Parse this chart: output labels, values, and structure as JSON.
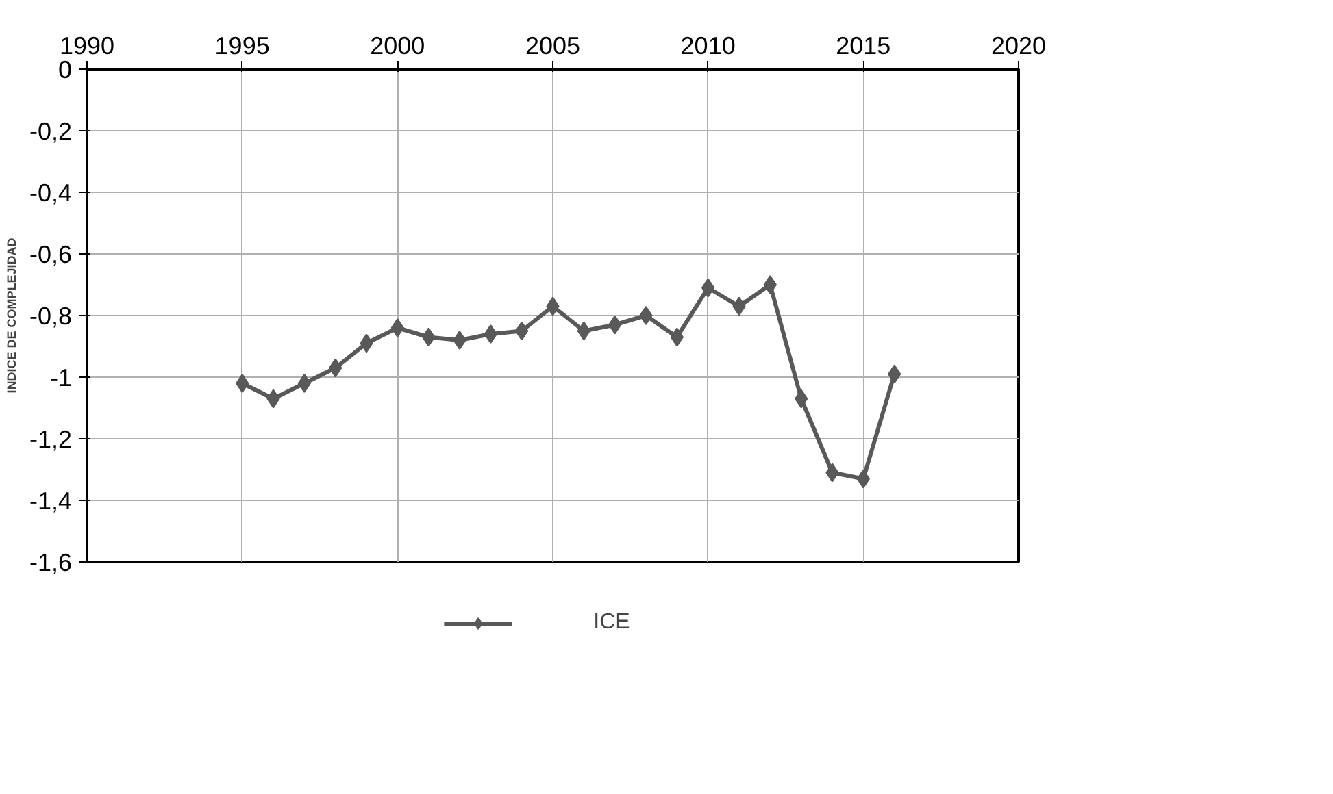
{
  "chart_data": {
    "type": "line",
    "ylabel": "INDICE DE COMPLEJIDAD",
    "x": [
      1995,
      1996,
      1997,
      1998,
      1999,
      2000,
      2001,
      2002,
      2003,
      2004,
      2005,
      2006,
      2007,
      2008,
      2009,
      2010,
      2011,
      2012,
      2013,
      2014,
      2015,
      2016
    ],
    "series": [
      {
        "name": "ICE",
        "color": "#595959",
        "values": [
          -1.02,
          -1.07,
          -1.02,
          -0.97,
          -0.89,
          -0.84,
          -0.87,
          -0.88,
          -0.86,
          -0.85,
          -0.77,
          -0.85,
          -0.83,
          -0.8,
          -0.87,
          -0.71,
          -0.77,
          -0.7,
          -1.07,
          -1.31,
          -1.33,
          -0.99
        ]
      }
    ],
    "xlim": [
      1990,
      2020
    ],
    "xticks": [
      1990,
      1995,
      2000,
      2005,
      2010,
      2015,
      2020
    ],
    "ylim": [
      -1.6,
      0
    ],
    "yticks": [
      {
        "value": 0,
        "label": "0"
      },
      {
        "value": -0.2,
        "label": "-0,2"
      },
      {
        "value": -0.4,
        "label": "-0,4"
      },
      {
        "value": -0.6,
        "label": "-0,6"
      },
      {
        "value": -0.8,
        "label": "-0,8"
      },
      {
        "value": -1,
        "label": "-1"
      },
      {
        "value": -1.2,
        "label": "-1,2"
      },
      {
        "value": -1.4,
        "label": "-1,4"
      },
      {
        "value": -1.6,
        "label": "-1,6"
      }
    ],
    "grid": true,
    "legend": "bottom",
    "marker": "diamond",
    "line_style": "solid"
  }
}
